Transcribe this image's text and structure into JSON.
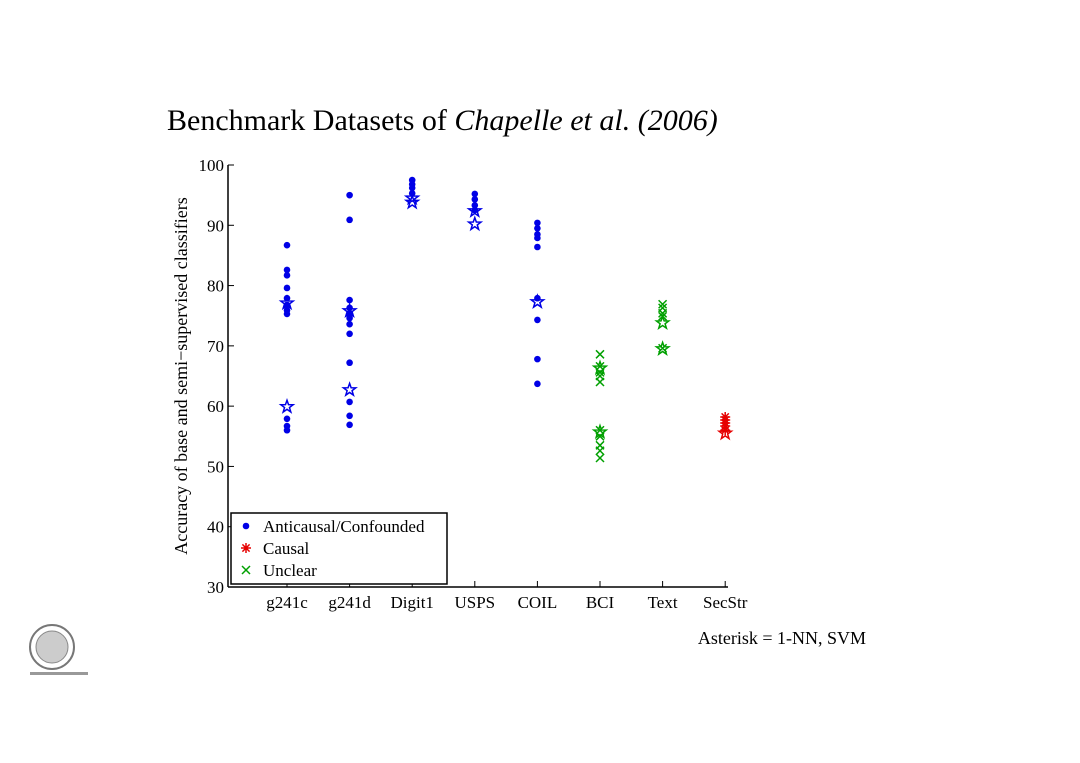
{
  "chart_data": {
    "type": "strip",
    "title": [
      "Benchmark Datasets of ",
      "Chapelle et al. (2006)"
    ],
    "ylabel": "Accuracy of base and semi−supervised classifiers",
    "note": "Asterisk = 1-NN, SVM",
    "categories": [
      "g241c",
      "g241d",
      "Digit1",
      "USPS",
      "COIL",
      "BCI",
      "Text",
      "SecStr"
    ],
    "ylim": [
      30,
      100
    ],
    "yticks": [
      30,
      40,
      50,
      60,
      70,
      80,
      90,
      100
    ],
    "legend": "lower left",
    "series": [
      {
        "name": "Anticausal/Confounded",
        "color": "#0000e6",
        "marker": "dot",
        "values": [
          [
            86.7,
            82.6,
            81.7,
            79.6,
            77.9,
            76.8,
            75.9,
            75.3,
            57.9,
            56.7,
            56.0
          ],
          [
            95.0,
            90.9,
            77.6,
            76.3,
            75.4,
            74.6,
            73.6,
            72.0,
            67.2,
            60.7,
            58.4,
            56.9
          ],
          [
            97.5,
            96.8,
            96.2,
            95.3
          ],
          [
            95.2,
            94.3,
            93.3,
            92.5
          ],
          [
            90.4,
            89.5,
            88.5,
            87.9,
            86.4,
            77.9,
            74.3,
            67.8,
            63.7
          ],
          null,
          null,
          null
        ],
        "star_values": [
          [
            77.1,
            59.9
          ],
          [
            75.8,
            62.7
          ],
          [
            94.5,
            93.8
          ],
          [
            92.4,
            90.2
          ],
          [
            77.3
          ],
          null,
          null,
          null
        ]
      },
      {
        "name": "Causal",
        "color": "#e60000",
        "marker": "asterisk",
        "values": [
          null,
          null,
          null,
          null,
          null,
          null,
          null,
          [
            58.2,
            57.7,
            57.2,
            56.7,
            56.0
          ]
        ],
        "star_values": [
          null,
          null,
          null,
          null,
          null,
          null,
          null,
          [
            55.5
          ]
        ]
      },
      {
        "name": "Unclear",
        "color": "#00a000",
        "marker": "x",
        "values": [
          null,
          null,
          null,
          null,
          null,
          [
            68.6,
            66.6,
            65.6,
            65.0,
            64.0,
            56.0,
            55.0,
            53.5,
            52.6,
            51.4
          ],
          [
            76.9,
            76.3,
            75.4,
            74.9,
            69.6
          ],
          null
        ],
        "star_values": [
          null,
          null,
          null,
          null,
          null,
          [
            66.3,
            55.7
          ],
          [
            73.8,
            69.5
          ],
          null
        ]
      }
    ]
  }
}
